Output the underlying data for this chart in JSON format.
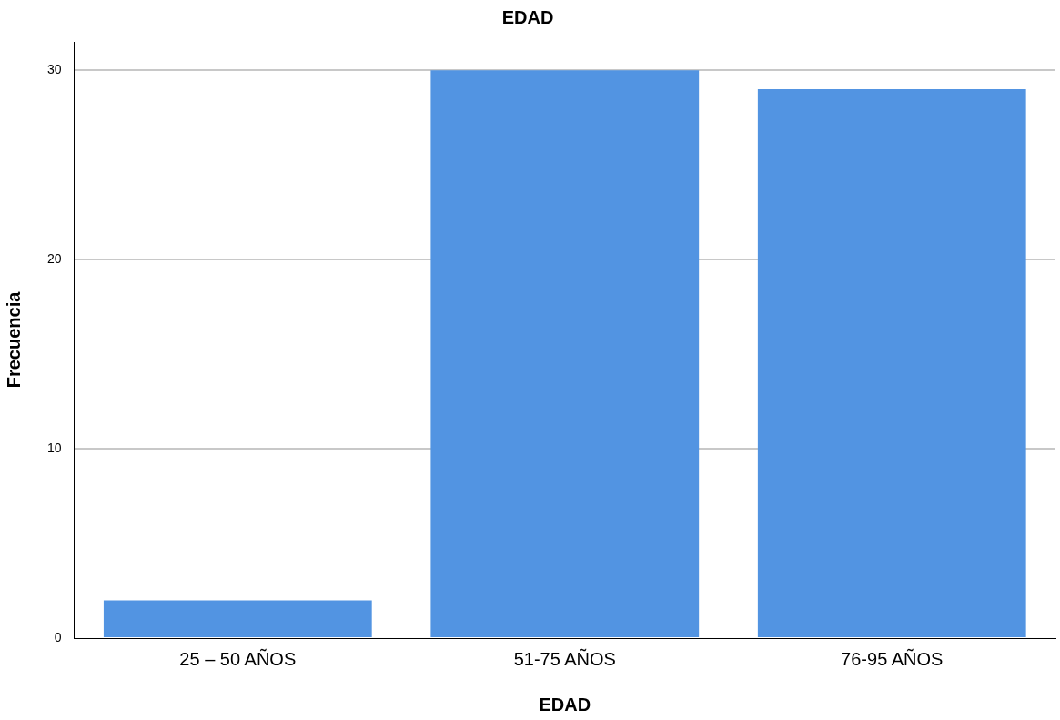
{
  "chart_data": {
    "type": "bar",
    "title": "EDAD",
    "xlabel": "EDAD",
    "ylabel": "Frecuencia",
    "categories": [
      "25 – 50 AÑOS",
      "51-75 AÑOS",
      "76-95 AÑOS"
    ],
    "values": [
      2,
      30,
      29
    ],
    "color": "#5294e2",
    "ylim": [
      0,
      31.5
    ],
    "yticks": [
      0,
      10,
      20,
      30
    ],
    "grid": "y",
    "legend": false
  }
}
